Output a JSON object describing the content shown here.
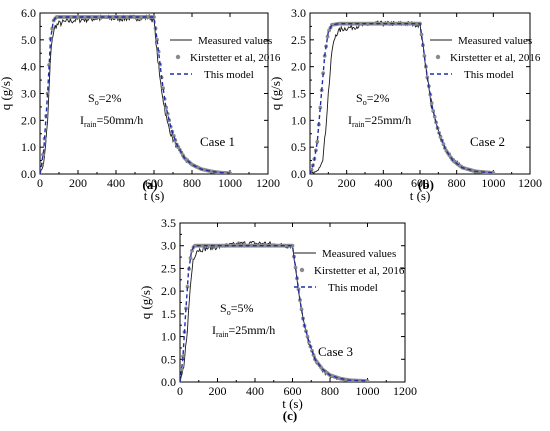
{
  "colors": {
    "measured": "#1a1a1a",
    "kirstetter": "#8a8a8a",
    "model": "#1f2ea8",
    "axis": "#000000"
  },
  "chart_data": [
    {
      "type": "line",
      "panel_tag": "(a)",
      "case_label": "Case 1",
      "annotation": {
        "slope_symbol": "S",
        "slope_sub": "o",
        "slope_value": "=2%",
        "rain_symbol": "I",
        "rain_sub": "rain",
        "rain_value": "=50mm/h"
      },
      "xlabel": "t (s)",
      "ylabel": "q (g/s)",
      "xlim": [
        0,
        1200
      ],
      "ylim": [
        0,
        6.0
      ],
      "xticks": [
        "0",
        "200",
        "400",
        "600",
        "800",
        "1000",
        "1200"
      ],
      "yticks": [
        "0.0",
        "1.0",
        "2.0",
        "3.0",
        "4.0",
        "5.0",
        "6.0"
      ],
      "legend_position": "top-right",
      "series": [
        {
          "name": "Measured values",
          "style": "solid",
          "points": [
            [
              0,
              0
            ],
            [
              20,
              0.4
            ],
            [
              40,
              1.9
            ],
            [
              55,
              4.3
            ],
            [
              65,
              5.1
            ],
            [
              80,
              5.5
            ],
            [
              100,
              5.6
            ],
            [
              150,
              5.7
            ],
            [
              200,
              5.75
            ],
            [
              300,
              5.8
            ],
            [
              400,
              5.8
            ],
            [
              500,
              5.82
            ],
            [
              580,
              5.85
            ],
            [
              600,
              5.7
            ],
            [
              615,
              4.6
            ],
            [
              630,
              3.6
            ],
            [
              650,
              2.7
            ],
            [
              670,
              1.9
            ],
            [
              700,
              1.3
            ],
            [
              730,
              0.9
            ],
            [
              770,
              0.5
            ],
            [
              820,
              0.25
            ],
            [
              880,
              0.12
            ],
            [
              950,
              0.05
            ],
            [
              1000,
              0.02
            ]
          ],
          "noise": 0.12
        },
        {
          "name": "Kirstetter et al, 2016",
          "style": "markers",
          "points": [
            [
              0,
              0
            ],
            [
              20,
              0.9
            ],
            [
              40,
              3.0
            ],
            [
              55,
              5.0
            ],
            [
              70,
              5.7
            ],
            [
              85,
              5.85
            ],
            [
              120,
              5.85
            ],
            [
              200,
              5.85
            ],
            [
              300,
              5.85
            ],
            [
              400,
              5.85
            ],
            [
              500,
              5.85
            ],
            [
              600,
              5.85
            ],
            [
              620,
              4.8
            ],
            [
              640,
              3.6
            ],
            [
              660,
              2.6
            ],
            [
              690,
              1.7
            ],
            [
              720,
              1.1
            ],
            [
              760,
              0.6
            ],
            [
              800,
              0.35
            ],
            [
              850,
              0.18
            ],
            [
              900,
              0.1
            ],
            [
              950,
              0.05
            ],
            [
              1000,
              0.03
            ]
          ]
        },
        {
          "name": "This model",
          "style": "dashed",
          "points": [
            [
              0,
              0
            ],
            [
              20,
              0.9
            ],
            [
              40,
              3.0
            ],
            [
              55,
              5.0
            ],
            [
              70,
              5.7
            ],
            [
              85,
              5.85
            ],
            [
              120,
              5.85
            ],
            [
              200,
              5.85
            ],
            [
              300,
              5.85
            ],
            [
              400,
              5.85
            ],
            [
              500,
              5.85
            ],
            [
              600,
              5.85
            ],
            [
              620,
              4.8
            ],
            [
              640,
              3.6
            ],
            [
              660,
              2.6
            ],
            [
              690,
              1.7
            ],
            [
              720,
              1.1
            ],
            [
              760,
              0.6
            ],
            [
              800,
              0.35
            ],
            [
              850,
              0.18
            ],
            [
              900,
              0.1
            ],
            [
              950,
              0.05
            ],
            [
              1000,
              0.03
            ]
          ]
        }
      ]
    },
    {
      "type": "line",
      "panel_tag": "(b)",
      "case_label": "Case 2",
      "annotation": {
        "slope_symbol": "S",
        "slope_sub": "o",
        "slope_value": "=2%",
        "rain_symbol": "I",
        "rain_sub": "rain",
        "rain_value": "=25mm/h"
      },
      "xlabel": "t (s)",
      "ylabel": "q (g/s)",
      "xlim": [
        0,
        1200
      ],
      "ylim": [
        0,
        3.0
      ],
      "xticks": [
        "0",
        "200",
        "400",
        "600",
        "800",
        "1000",
        "1200"
      ],
      "yticks": [
        "0.0",
        "0.5",
        "1.0",
        "1.5",
        "2.0",
        "2.5",
        "3.0"
      ],
      "legend_position": "top-right",
      "series": [
        {
          "name": "Measured values",
          "style": "solid",
          "points": [
            [
              0,
              0
            ],
            [
              40,
              0.05
            ],
            [
              70,
              0.3
            ],
            [
              85,
              0.8
            ],
            [
              100,
              1.5
            ],
            [
              120,
              2.3
            ],
            [
              140,
              2.6
            ],
            [
              170,
              2.7
            ],
            [
              250,
              2.75
            ],
            [
              350,
              2.8
            ],
            [
              450,
              2.8
            ],
            [
              550,
              2.8
            ],
            [
              600,
              2.78
            ],
            [
              620,
              2.3
            ],
            [
              640,
              1.8
            ],
            [
              660,
              1.3
            ],
            [
              690,
              0.9
            ],
            [
              720,
              0.6
            ],
            [
              760,
              0.35
            ],
            [
              800,
              0.2
            ],
            [
              850,
              0.1
            ],
            [
              900,
              0.06
            ],
            [
              1000,
              0.02
            ]
          ],
          "noise": 0.1
        },
        {
          "name": "Kirstetter et al, 2016",
          "style": "markers",
          "points": [
            [
              0,
              0
            ],
            [
              20,
              0.2
            ],
            [
              40,
              0.6
            ],
            [
              60,
              1.4
            ],
            [
              80,
              2.2
            ],
            [
              100,
              2.65
            ],
            [
              120,
              2.78
            ],
            [
              160,
              2.8
            ],
            [
              250,
              2.8
            ],
            [
              350,
              2.8
            ],
            [
              450,
              2.8
            ],
            [
              550,
              2.8
            ],
            [
              600,
              2.8
            ],
            [
              620,
              2.3
            ],
            [
              640,
              1.8
            ],
            [
              670,
              1.2
            ],
            [
              700,
              0.8
            ],
            [
              740,
              0.45
            ],
            [
              780,
              0.25
            ],
            [
              830,
              0.12
            ],
            [
              900,
              0.05
            ],
            [
              1000,
              0.02
            ]
          ]
        },
        {
          "name": "This model",
          "style": "dashed",
          "points": [
            [
              0,
              0
            ],
            [
              20,
              0.2
            ],
            [
              40,
              0.6
            ],
            [
              60,
              1.4
            ],
            [
              80,
              2.2
            ],
            [
              100,
              2.65
            ],
            [
              120,
              2.78
            ],
            [
              160,
              2.8
            ],
            [
              250,
              2.8
            ],
            [
              350,
              2.8
            ],
            [
              450,
              2.8
            ],
            [
              550,
              2.8
            ],
            [
              600,
              2.8
            ],
            [
              620,
              2.3
            ],
            [
              640,
              1.8
            ],
            [
              670,
              1.2
            ],
            [
              700,
              0.8
            ],
            [
              740,
              0.45
            ],
            [
              780,
              0.25
            ],
            [
              830,
              0.12
            ],
            [
              900,
              0.05
            ],
            [
              1000,
              0.02
            ]
          ]
        }
      ]
    },
    {
      "type": "line",
      "panel_tag": "(c)",
      "case_label": "Case 3",
      "annotation": {
        "slope_symbol": "S",
        "slope_sub": "o",
        "slope_value": "=5%",
        "rain_symbol": "I",
        "rain_sub": "rain",
        "rain_value": "=25mm/h"
      },
      "xlabel": "t (s)",
      "ylabel": "q (g/s)",
      "xlim": [
        0,
        1200
      ],
      "ylim": [
        0,
        3.5
      ],
      "xticks": [
        "0",
        "200",
        "400",
        "600",
        "800",
        "1000",
        "1200"
      ],
      "yticks": [
        "0.0",
        "0.5",
        "1.0",
        "1.5",
        "2.0",
        "2.5",
        "3.0",
        "3.5"
      ],
      "legend_position": "top-right",
      "series": [
        {
          "name": "Measured values",
          "style": "solid",
          "points": [
            [
              0,
              0
            ],
            [
              20,
              0.3
            ],
            [
              40,
              1.2
            ],
            [
              55,
              2.1
            ],
            [
              70,
              2.7
            ],
            [
              90,
              2.9
            ],
            [
              150,
              2.95
            ],
            [
              250,
              3.0
            ],
            [
              350,
              3.05
            ],
            [
              450,
              3.05
            ],
            [
              550,
              3.0
            ],
            [
              600,
              3.0
            ],
            [
              620,
              2.4
            ],
            [
              640,
              1.8
            ],
            [
              660,
              1.3
            ],
            [
              690,
              0.8
            ],
            [
              720,
              0.5
            ],
            [
              760,
              0.25
            ],
            [
              800,
              0.12
            ],
            [
              850,
              0.06
            ],
            [
              900,
              0.03
            ],
            [
              1000,
              0.02
            ]
          ],
          "noise": 0.1
        },
        {
          "name": "Kirstetter et al, 2016",
          "style": "markers",
          "points": [
            [
              0,
              0
            ],
            [
              15,
              0.5
            ],
            [
              30,
              1.5
            ],
            [
              45,
              2.4
            ],
            [
              60,
              2.85
            ],
            [
              75,
              3.0
            ],
            [
              100,
              3.0
            ],
            [
              200,
              3.0
            ],
            [
              300,
              3.0
            ],
            [
              400,
              3.0
            ],
            [
              500,
              3.0
            ],
            [
              600,
              3.0
            ],
            [
              620,
              2.4
            ],
            [
              640,
              1.8
            ],
            [
              660,
              1.3
            ],
            [
              690,
              0.85
            ],
            [
              720,
              0.5
            ],
            [
              760,
              0.28
            ],
            [
              800,
              0.15
            ],
            [
              850,
              0.08
            ],
            [
              900,
              0.04
            ],
            [
              1000,
              0.02
            ]
          ]
        },
        {
          "name": "This model",
          "style": "dashed",
          "points": [
            [
              0,
              0
            ],
            [
              15,
              0.5
            ],
            [
              30,
              1.5
            ],
            [
              45,
              2.4
            ],
            [
              60,
              2.85
            ],
            [
              75,
              3.0
            ],
            [
              100,
              3.0
            ],
            [
              200,
              3.0
            ],
            [
              300,
              3.0
            ],
            [
              400,
              3.0
            ],
            [
              500,
              3.0
            ],
            [
              600,
              3.0
            ],
            [
              620,
              2.4
            ],
            [
              640,
              1.8
            ],
            [
              660,
              1.3
            ],
            [
              690,
              0.85
            ],
            [
              720,
              0.5
            ],
            [
              760,
              0.28
            ],
            [
              800,
              0.15
            ],
            [
              850,
              0.08
            ],
            [
              900,
              0.04
            ],
            [
              1000,
              0.02
            ]
          ]
        }
      ]
    }
  ]
}
